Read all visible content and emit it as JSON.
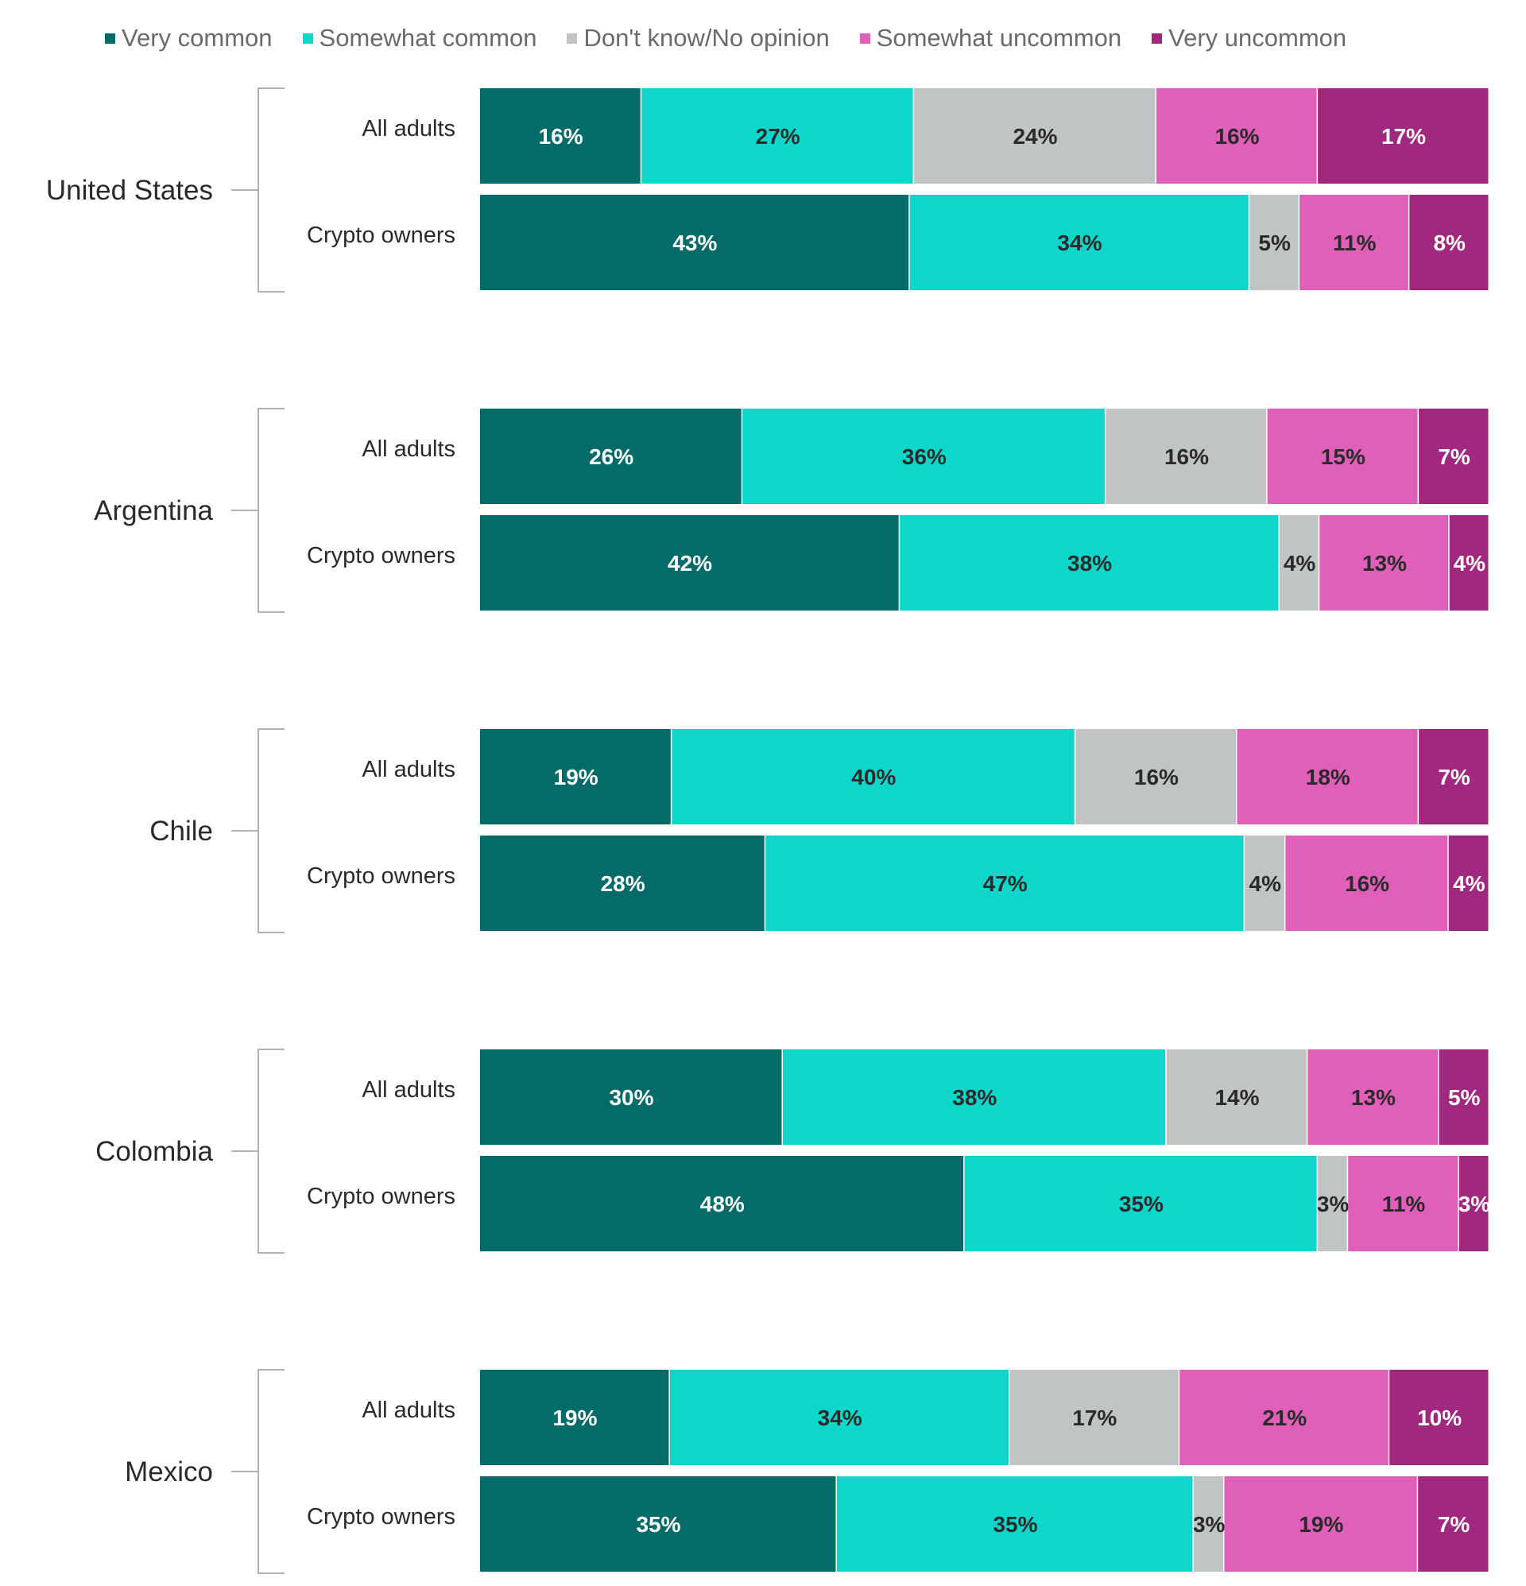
{
  "chart_data": {
    "type": "bar",
    "orientation": "horizontal",
    "stacked": true,
    "normalized_percent": true,
    "legend": {
      "position": "top",
      "items": [
        {
          "label": "Very common",
          "color": "#056b68"
        },
        {
          "label": "Somewhat common",
          "color": "#0fd6cb"
        },
        {
          "label": "Don't know/No opinion",
          "color": "#c0c4c4"
        },
        {
          "label": "Somewhat uncommon",
          "color": "#e060b9"
        },
        {
          "label": "Very uncommon",
          "color": "#a0287f"
        }
      ]
    },
    "label_colors": [
      "#ffffff",
      "#2a2a2a",
      "#2a2a2a",
      "#2a2a2a",
      "#ffffff"
    ],
    "groups": [
      {
        "name": "United States",
        "rows": [
          {
            "label": "All adults",
            "values": [
              16,
              27,
              24,
              16,
              17
            ]
          },
          {
            "label": "Crypto owners",
            "values": [
              43,
              34,
              5,
              11,
              8
            ]
          }
        ]
      },
      {
        "name": "Argentina",
        "rows": [
          {
            "label": "All adults",
            "values": [
              26,
              36,
              16,
              15,
              7
            ]
          },
          {
            "label": "Crypto owners",
            "values": [
              42,
              38,
              4,
              13,
              4
            ]
          }
        ]
      },
      {
        "name": "Chile",
        "rows": [
          {
            "label": "All adults",
            "values": [
              19,
              40,
              16,
              18,
              7
            ]
          },
          {
            "label": "Crypto owners",
            "values": [
              28,
              47,
              4,
              16,
              4
            ]
          }
        ]
      },
      {
        "name": "Colombia",
        "rows": [
          {
            "label": "All adults",
            "values": [
              30,
              38,
              14,
              13,
              5
            ]
          },
          {
            "label": "Crypto owners",
            "values": [
              48,
              35,
              3,
              11,
              3
            ]
          }
        ]
      },
      {
        "name": "Mexico",
        "rows": [
          {
            "label": "All adults",
            "values": [
              19,
              34,
              17,
              21,
              10
            ]
          },
          {
            "label": "Crypto owners",
            "values": [
              35,
              35,
              3,
              19,
              7
            ]
          }
        ]
      }
    ]
  }
}
